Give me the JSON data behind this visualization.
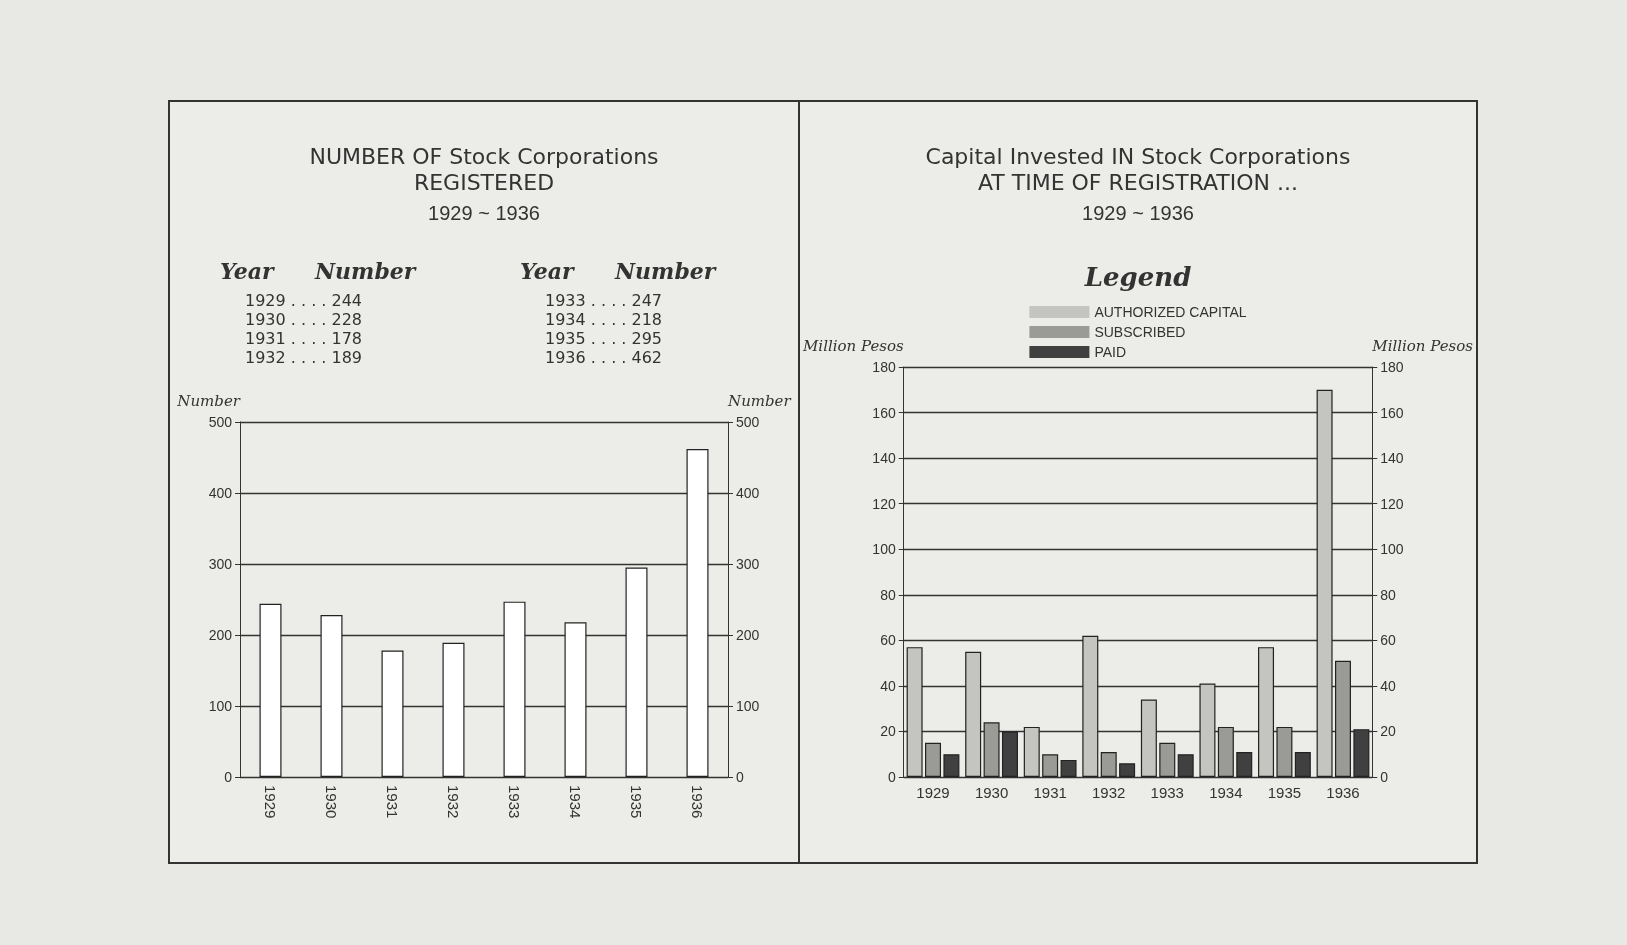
{
  "chart_data": [
    {
      "type": "bar",
      "title": "NUMBER OF Stock Corporations\nREGISTERED",
      "subtitle": "1929 ~ 1936",
      "ylabel": "Number",
      "y2label": "Number",
      "categories": [
        "1929",
        "1930",
        "1931",
        "1932",
        "1933",
        "1934",
        "1935",
        "1936"
      ],
      "series": [
        {
          "color": "#ffffff",
          "values": [
            244,
            228,
            178,
            189,
            247,
            218,
            295,
            462
          ]
        }
      ],
      "annotations": [
        "Year",
        "Number",
        "1929 . . . . 244",
        "1930 . . . . 228",
        "1931 . . . . 178",
        "1932 . . . . 189",
        "1933 . . . . 247",
        "1934 . . . . 218",
        "1935 . . . . 295",
        "1936 . . . . 462"
      ],
      "ylim": [
        0,
        500
      ],
      "yticks": [
        0,
        100,
        200,
        300,
        400,
        500
      ],
      "y2lim": [
        0,
        500
      ],
      "y2ticks": [
        0,
        100,
        200,
        300,
        400,
        500
      ],
      "grid": "y",
      "legend": false
    },
    {
      "type": "bar",
      "title": "Capital Invested IN Stock Corporations\nAT TIME OF REGISTRATION ...",
      "subtitle": "1929 ~ 1936",
      "legend_title": "Legend",
      "ylabel": "Million Pesos",
      "y2label": "Million Pesos",
      "categories": [
        "1929",
        "1930",
        "1931",
        "1932",
        "1933",
        "1934",
        "1935",
        "1936"
      ],
      "series": [
        {
          "name": "AUTHORIZED CAPITAL",
          "color": "#c4c4c0",
          "values": [
            57,
            55,
            22,
            62,
            34,
            41,
            57,
            170
          ]
        },
        {
          "name": "SUBSCRIBED",
          "color": "#9a9a96",
          "values": [
            15,
            24,
            10,
            11,
            15,
            22,
            22,
            51
          ]
        },
        {
          "name": "PAID",
          "color": "#404040",
          "values": [
            10,
            20,
            7.5,
            6,
            10,
            11,
            11,
            21
          ]
        }
      ],
      "ylim": [
        0,
        180
      ],
      "yticks": [
        0,
        20,
        40,
        60,
        80,
        100,
        120,
        140,
        160,
        180
      ],
      "y2lim": [
        0,
        180
      ],
      "y2ticks": [
        0,
        20,
        40,
        60,
        80,
        100,
        120,
        140,
        160,
        180
      ],
      "grid": "y",
      "legend": "top"
    }
  ]
}
